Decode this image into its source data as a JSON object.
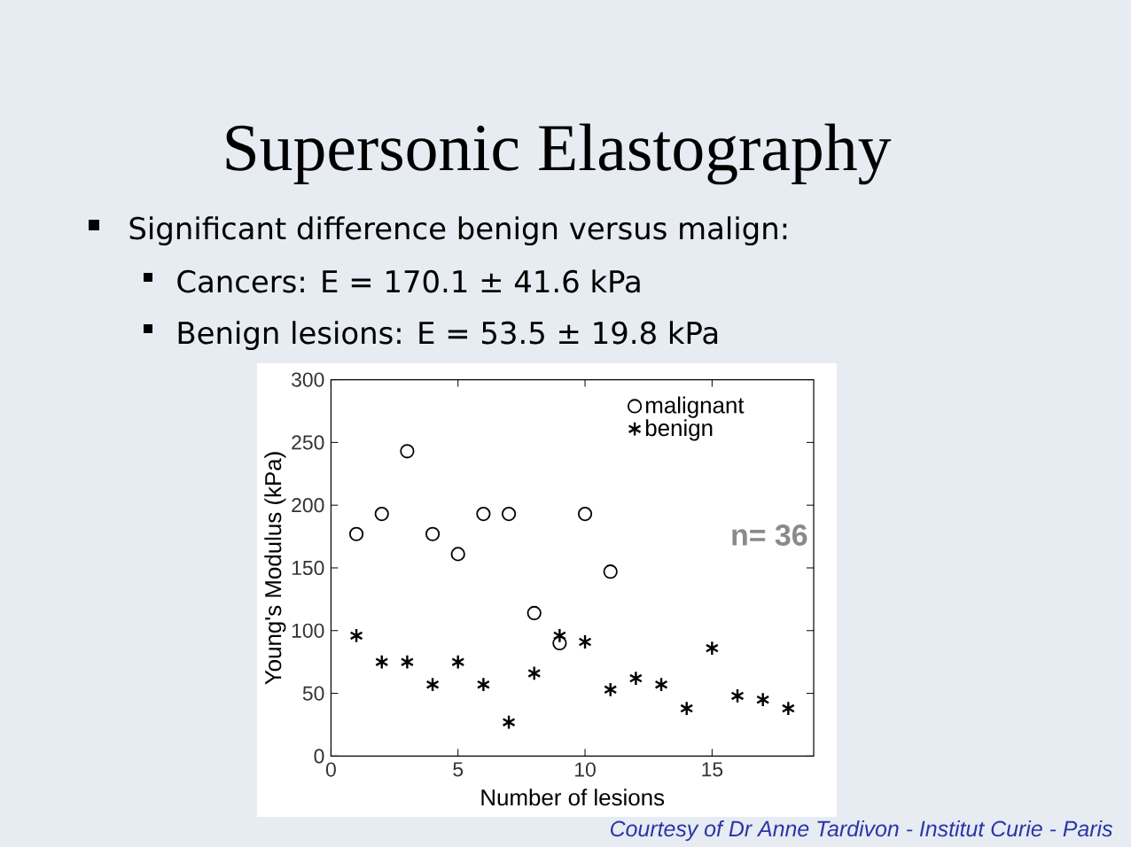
{
  "chart_data": {
    "type": "scatter",
    "title": "Supersonic Elastography",
    "subtitle": "Significant difference benign versus malign:",
    "xlabel": "Number of lesions",
    "ylabel": "Young's Modulus (kPa)",
    "annotations": [
      "Cancers: E = 170.1 ± 41.6 kPa",
      "Benign lesions: E = 53.5 ± 19.8 kPa",
      "n= 36",
      "Courtesy of Dr Anne Tardivon - Institut Curie - Paris"
    ],
    "series": [
      {
        "name": "malignant",
        "color": "#000000",
        "marker": "circle",
        "x": [
          1,
          2,
          3,
          4,
          5,
          6,
          7,
          8,
          9,
          10,
          11
        ],
        "values": [
          177,
          193,
          243,
          177,
          161,
          193,
          193,
          114,
          90,
          193,
          147
        ]
      },
      {
        "name": "benign",
        "color": "#000000",
        "marker": "cross",
        "x": [
          1,
          2,
          3,
          4,
          5,
          6,
          7,
          8,
          9,
          10,
          11,
          12,
          13,
          14,
          15,
          16,
          17,
          18
        ],
        "values": [
          96,
          75,
          75,
          57,
          75,
          57,
          27,
          66,
          96,
          91,
          53,
          62,
          57,
          38,
          86,
          48,
          45,
          38
        ]
      }
    ],
    "xlim": [
      0,
      19
    ],
    "ylim": [
      0,
      300
    ],
    "xticks": [
      0,
      5,
      10,
      15
    ],
    "yticks": [
      0,
      50,
      100,
      150,
      200,
      250,
      300
    ],
    "legend": "top right"
  }
}
